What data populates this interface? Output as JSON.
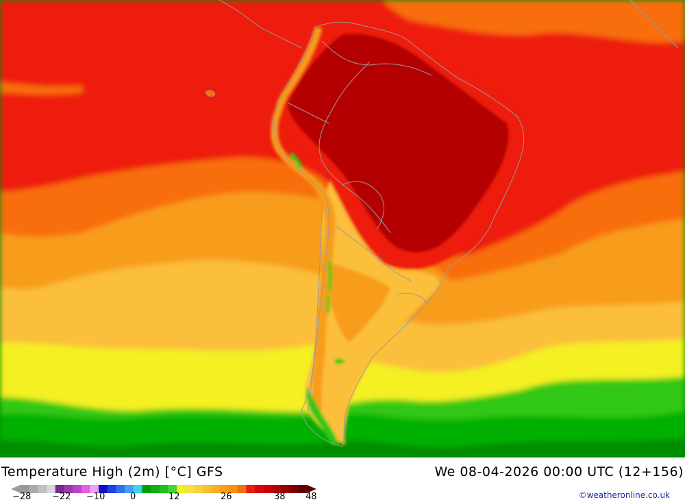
{
  "map": {
    "title": "Temperature High (2m) [°C] GFS",
    "datetime": "We 08-04-2026 00:00 UTC (12+156)",
    "copyright": "©weatheronline.co.uk",
    "legend": {
      "tick_labels": [
        "−28",
        "−22",
        "−10",
        "0",
        "12",
        "26",
        "38",
        "48"
      ],
      "colors": [
        "#9a9a9a",
        "#aaaaaa",
        "#c0c0c0",
        "#d8d8d8",
        "#7a2a8a",
        "#9a3aa8",
        "#c040c8",
        "#e060e0",
        "#f0a0f0",
        "#1010c8",
        "#2040e8",
        "#3070f0",
        "#40a0f8",
        "#40d0f0",
        "#00a000",
        "#10b010",
        "#20c020",
        "#40d830",
        "#f0f020",
        "#f8e040",
        "#f8d040",
        "#f8c030",
        "#f8b020",
        "#f8a018",
        "#f89010",
        "#f07010",
        "#e82010",
        "#d80808",
        "#c80000",
        "#b00000",
        "#980000",
        "#800000",
        "#600000"
      ]
    },
    "colors": {
      "dark_red": "#b40404",
      "red": "#ee1a0c",
      "orange_red": "#f86e10",
      "orange": "#f89c1c",
      "light_orange": "#fbbf3a",
      "yellow": "#f4f024",
      "green": "#00b000",
      "dark_green": "#008c00",
      "border": "#9a9a9a"
    }
  }
}
